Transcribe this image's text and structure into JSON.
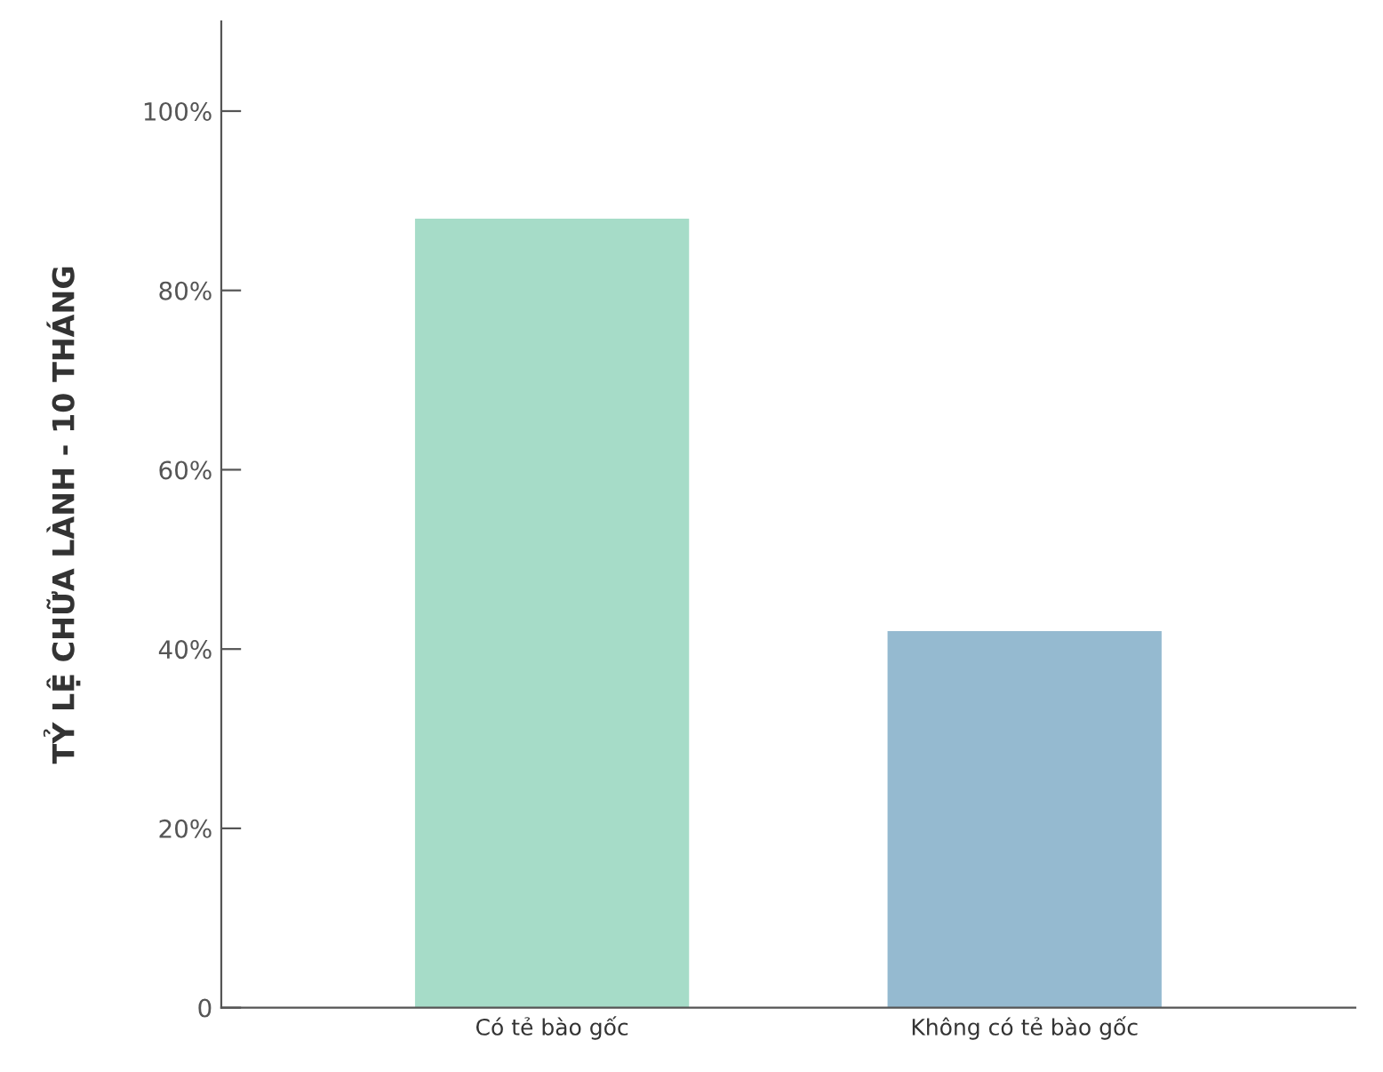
{
  "chart_data": {
    "type": "bar",
    "ylabel": "TỶ LỆ CHỮA LÀNH - 10 THÁNG",
    "categories": [
      "Có tẻ bào gốc",
      "Không có tẻ bào gốc"
    ],
    "values": [
      88,
      42
    ],
    "colors": [
      "#a6dcc8",
      "#95bad0"
    ],
    "ylim": [
      0,
      110
    ],
    "yticks": [
      0,
      {
        "value": 20,
        "label": "20%"
      },
      {
        "value": 40,
        "label": "40%"
      },
      {
        "value": 60,
        "label": "60%"
      },
      {
        "value": 80,
        "label": "80%"
      },
      {
        "value": 100,
        "label": "100%"
      }
    ],
    "grid": false
  }
}
